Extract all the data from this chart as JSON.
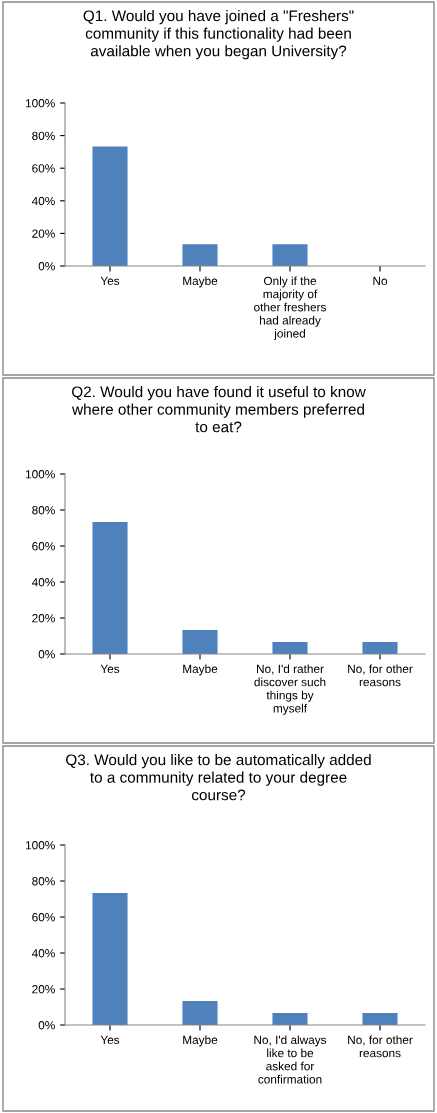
{
  "chart_data": [
    {
      "type": "bar",
      "title": "Q1. Would you have joined a \"Freshers\"\ncommunity if this functionality had been\navailable when you began University?",
      "categories": [
        "Yes",
        "Maybe",
        "Only if the\nmajority of\nother freshers\nhad already\njoined",
        "No"
      ],
      "values": [
        73.3,
        13.3,
        13.3,
        0
      ],
      "color": "#4f81bd",
      "ylim": [
        0,
        100
      ],
      "yticks": [
        {
          "value": 0,
          "label": "0%"
        },
        {
          "value": 20,
          "label": "20%"
        },
        {
          "value": 40,
          "label": "40%"
        },
        {
          "value": 60,
          "label": "60%"
        },
        {
          "value": 80,
          "label": "80%"
        },
        {
          "value": 100,
          "label": "100%"
        }
      ],
      "grid": false,
      "legend": false
    },
    {
      "type": "bar",
      "title": "Q2. Would you have found it useful to know\nwhere other community members preferred\nto eat?",
      "categories": [
        "Yes",
        "Maybe",
        "No, I'd rather\ndiscover such\nthings by\nmyself",
        "No, for other\nreasons"
      ],
      "values": [
        73.3,
        13.3,
        6.7,
        6.7
      ],
      "color": "#4f81bd",
      "ylim": [
        0,
        100
      ],
      "yticks": [
        {
          "value": 0,
          "label": "0%"
        },
        {
          "value": 20,
          "label": "20%"
        },
        {
          "value": 40,
          "label": "40%"
        },
        {
          "value": 60,
          "label": "60%"
        },
        {
          "value": 80,
          "label": "80%"
        },
        {
          "value": 100,
          "label": "100%"
        }
      ],
      "grid": false,
      "legend": false
    },
    {
      "type": "bar",
      "title": "Q3. Would you like to be automatically added\nto a community related to your degree\ncourse?",
      "categories": [
        "Yes",
        "Maybe",
        "No, I'd always\nlike to be\nasked for\nconfirmation",
        "No, for other\nreasons"
      ],
      "values": [
        73.3,
        13.3,
        6.7,
        6.7
      ],
      "color": "#4f81bd",
      "ylim": [
        0,
        100
      ],
      "yticks": [
        {
          "value": 0,
          "label": "0%"
        },
        {
          "value": 20,
          "label": "20%"
        },
        {
          "value": 40,
          "label": "40%"
        },
        {
          "value": 60,
          "label": "60%"
        },
        {
          "value": 80,
          "label": "80%"
        },
        {
          "value": 100,
          "label": "100%"
        }
      ],
      "grid": false,
      "legend": false
    }
  ]
}
